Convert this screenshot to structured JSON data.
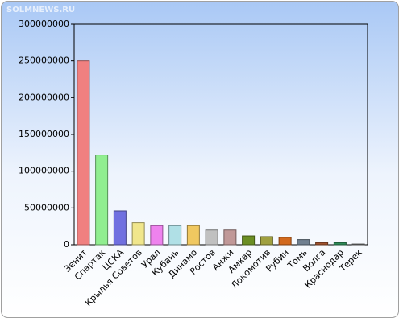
{
  "chart_data": {
    "type": "bar",
    "watermark": "SOLMNEWS.RU",
    "categories": [
      "Зенит",
      "Спартак",
      "ЦСКА",
      "Крылья Советов",
      "Урал",
      "Кубань",
      "Динамо",
      "Ростов",
      "Анжи",
      "Амкар",
      "Локомотив",
      "Рубин",
      "Томь",
      "Волга",
      "Краснодар",
      "Терек"
    ],
    "values": [
      250000000,
      122000000,
      46000000,
      30000000,
      26000000,
      26000000,
      26000000,
      20000000,
      20000000,
      12000000,
      11000000,
      10000000,
      7000000,
      3000000,
      3000000,
      1000000
    ],
    "colors": [
      "#f08080",
      "#90ee90",
      "#7070e0",
      "#f0e68c",
      "#ee82ee",
      "#b0e0e6",
      "#f0c860",
      "#c0c0c0",
      "#c09898",
      "#6b8e23",
      "#a0a040",
      "#d2691e",
      "#708090",
      "#a0522d",
      "#2e8b57",
      "#808080"
    ],
    "ylim": [
      0,
      300000000
    ],
    "yticks": [
      0,
      50000000,
      100000000,
      150000000,
      200000000,
      250000000,
      300000000
    ],
    "grid": false
  }
}
